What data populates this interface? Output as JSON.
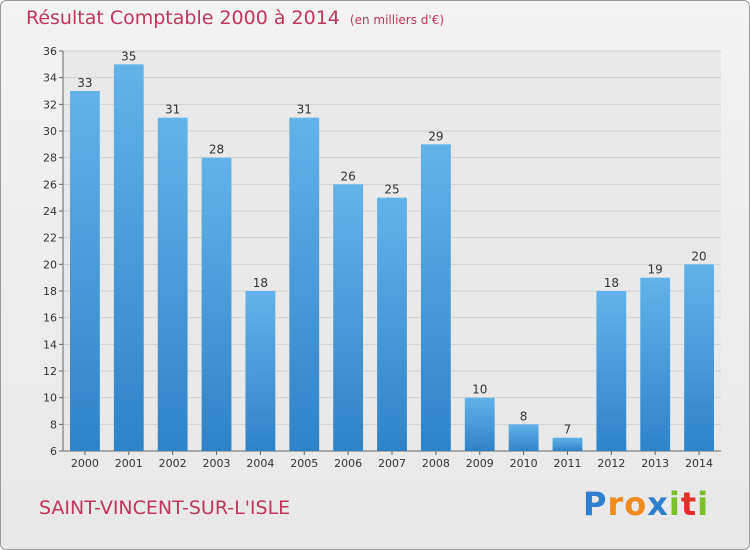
{
  "title": "Résultat Comptable 2000 à 2014",
  "unit_note": "(en milliers d'€)",
  "place": "SAINT-VINCENT-SUR-L'ISLE",
  "logo": {
    "text": "Proxiti",
    "letters": [
      {
        "ch": "P",
        "color": "#2e7fd0"
      },
      {
        "ch": "r",
        "color": "#f08a1c"
      },
      {
        "ch": "o",
        "color": "#f08a1c"
      },
      {
        "ch": "x",
        "color": "#2e7fd0"
      },
      {
        "ch": "i",
        "color": "#7bbf2a"
      },
      {
        "ch": "t",
        "color": "#e0302a"
      },
      {
        "ch": "i",
        "color": "#7bbf2a"
      }
    ]
  },
  "colors": {
    "bar_light": "#62b3ea",
    "bar_dark": "#2e83c8",
    "title": "#c0355a"
  },
  "chart_data": {
    "type": "bar",
    "title": "Résultat Comptable 2000 à 2014",
    "ylabel": "(en milliers d'€)",
    "categories": [
      "2000",
      "2001",
      "2002",
      "2003",
      "2004",
      "2005",
      "2006",
      "2007",
      "2008",
      "2009",
      "2010",
      "2011",
      "2012",
      "2013",
      "2014"
    ],
    "values": [
      33,
      35,
      31,
      28,
      18,
      31,
      26,
      25,
      29,
      10,
      8,
      7,
      18,
      19,
      20
    ],
    "ylim": [
      6,
      36
    ],
    "yticks": [
      6,
      8,
      10,
      12,
      14,
      16,
      18,
      20,
      22,
      24,
      26,
      28,
      30,
      32,
      34,
      36
    ],
    "grid": true
  }
}
